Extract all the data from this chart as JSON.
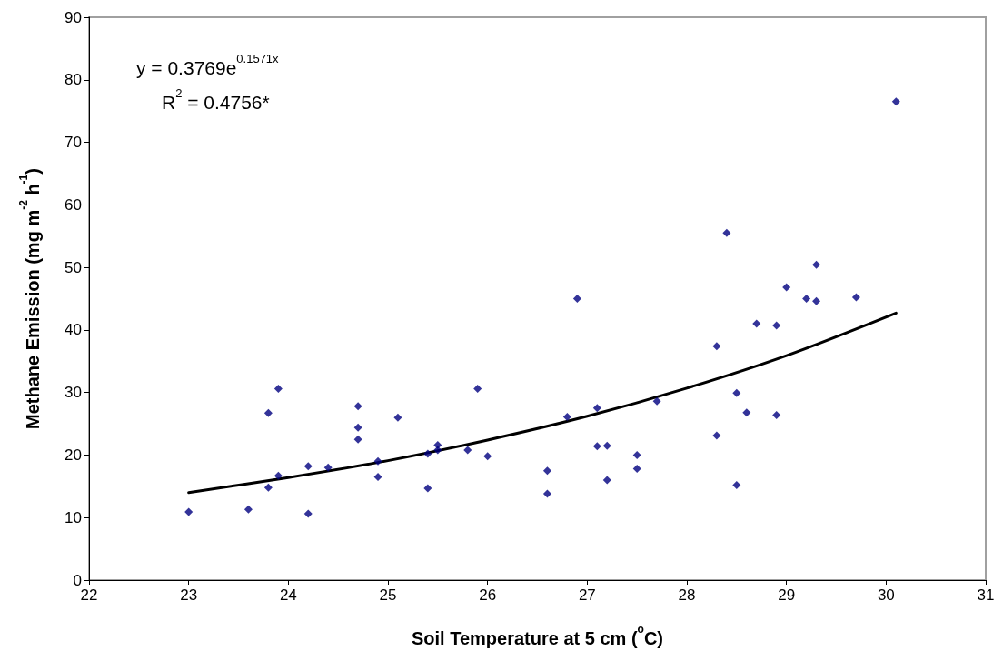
{
  "chart_data": {
    "type": "scatter",
    "xlabel": "Soil Temperature at 5 cm ($^{o}$C)",
    "ylabel": "Methane Emission (mg m$^{-2}$ h$^{-1}$)",
    "xlim": [
      22,
      31
    ],
    "xticks": [
      22,
      23,
      24,
      25,
      26,
      27,
      28,
      29,
      30,
      31
    ],
    "ylim": [
      0,
      90
    ],
    "yticks": [
      0,
      10,
      20,
      30,
      40,
      50,
      60,
      70,
      80,
      90
    ],
    "grid": false,
    "annotations": [
      "y = 0.3769e$^{0.1571x}$",
      "R$^{2}$ = 0.4756*"
    ],
    "series": [
      {
        "color": "#000080",
        "marker": "diamond",
        "x": [
          23.0,
          23.6,
          23.8,
          23.8,
          23.9,
          23.9,
          24.2,
          24.2,
          24.4,
          24.7,
          24.7,
          24.7,
          24.9,
          24.9,
          25.1,
          25.4,
          25.4,
          25.5,
          25.5,
          25.8,
          25.9,
          26.0,
          26.6,
          26.6,
          26.8,
          26.9,
          27.1,
          27.1,
          27.2,
          27.2,
          27.5,
          27.5,
          27.7,
          28.3,
          28.3,
          28.4,
          28.5,
          28.5,
          28.6,
          28.7,
          28.9,
          28.9,
          29.0,
          29.2,
          29.3,
          29.3,
          29.7,
          30.1
        ],
        "values": [
          10.9,
          11.3,
          26.7,
          14.8,
          30.6,
          16.7,
          18.2,
          10.6,
          18.0,
          27.8,
          24.4,
          22.5,
          19.0,
          16.5,
          26.0,
          20.2,
          14.7,
          21.6,
          20.8,
          20.8,
          30.6,
          19.8,
          17.5,
          13.8,
          26.1,
          45.0,
          27.5,
          21.4,
          21.5,
          16.0,
          20.0,
          17.8,
          28.6,
          37.4,
          23.1,
          55.5,
          29.9,
          15.2,
          26.8,
          41.0,
          40.7,
          26.4,
          46.8,
          45.0,
          50.4,
          44.6,
          45.2,
          76.5
        ]
      },
      {
        "type": "line",
        "color": "#000000",
        "marker": "none",
        "line_style": "solid",
        "x": [
          23,
          24,
          25,
          26,
          27,
          28,
          29,
          30.1
        ],
        "values": [
          14.0,
          16.4,
          19.1,
          22.4,
          26.2,
          30.7,
          35.9,
          42.7
        ]
      }
    ]
  }
}
